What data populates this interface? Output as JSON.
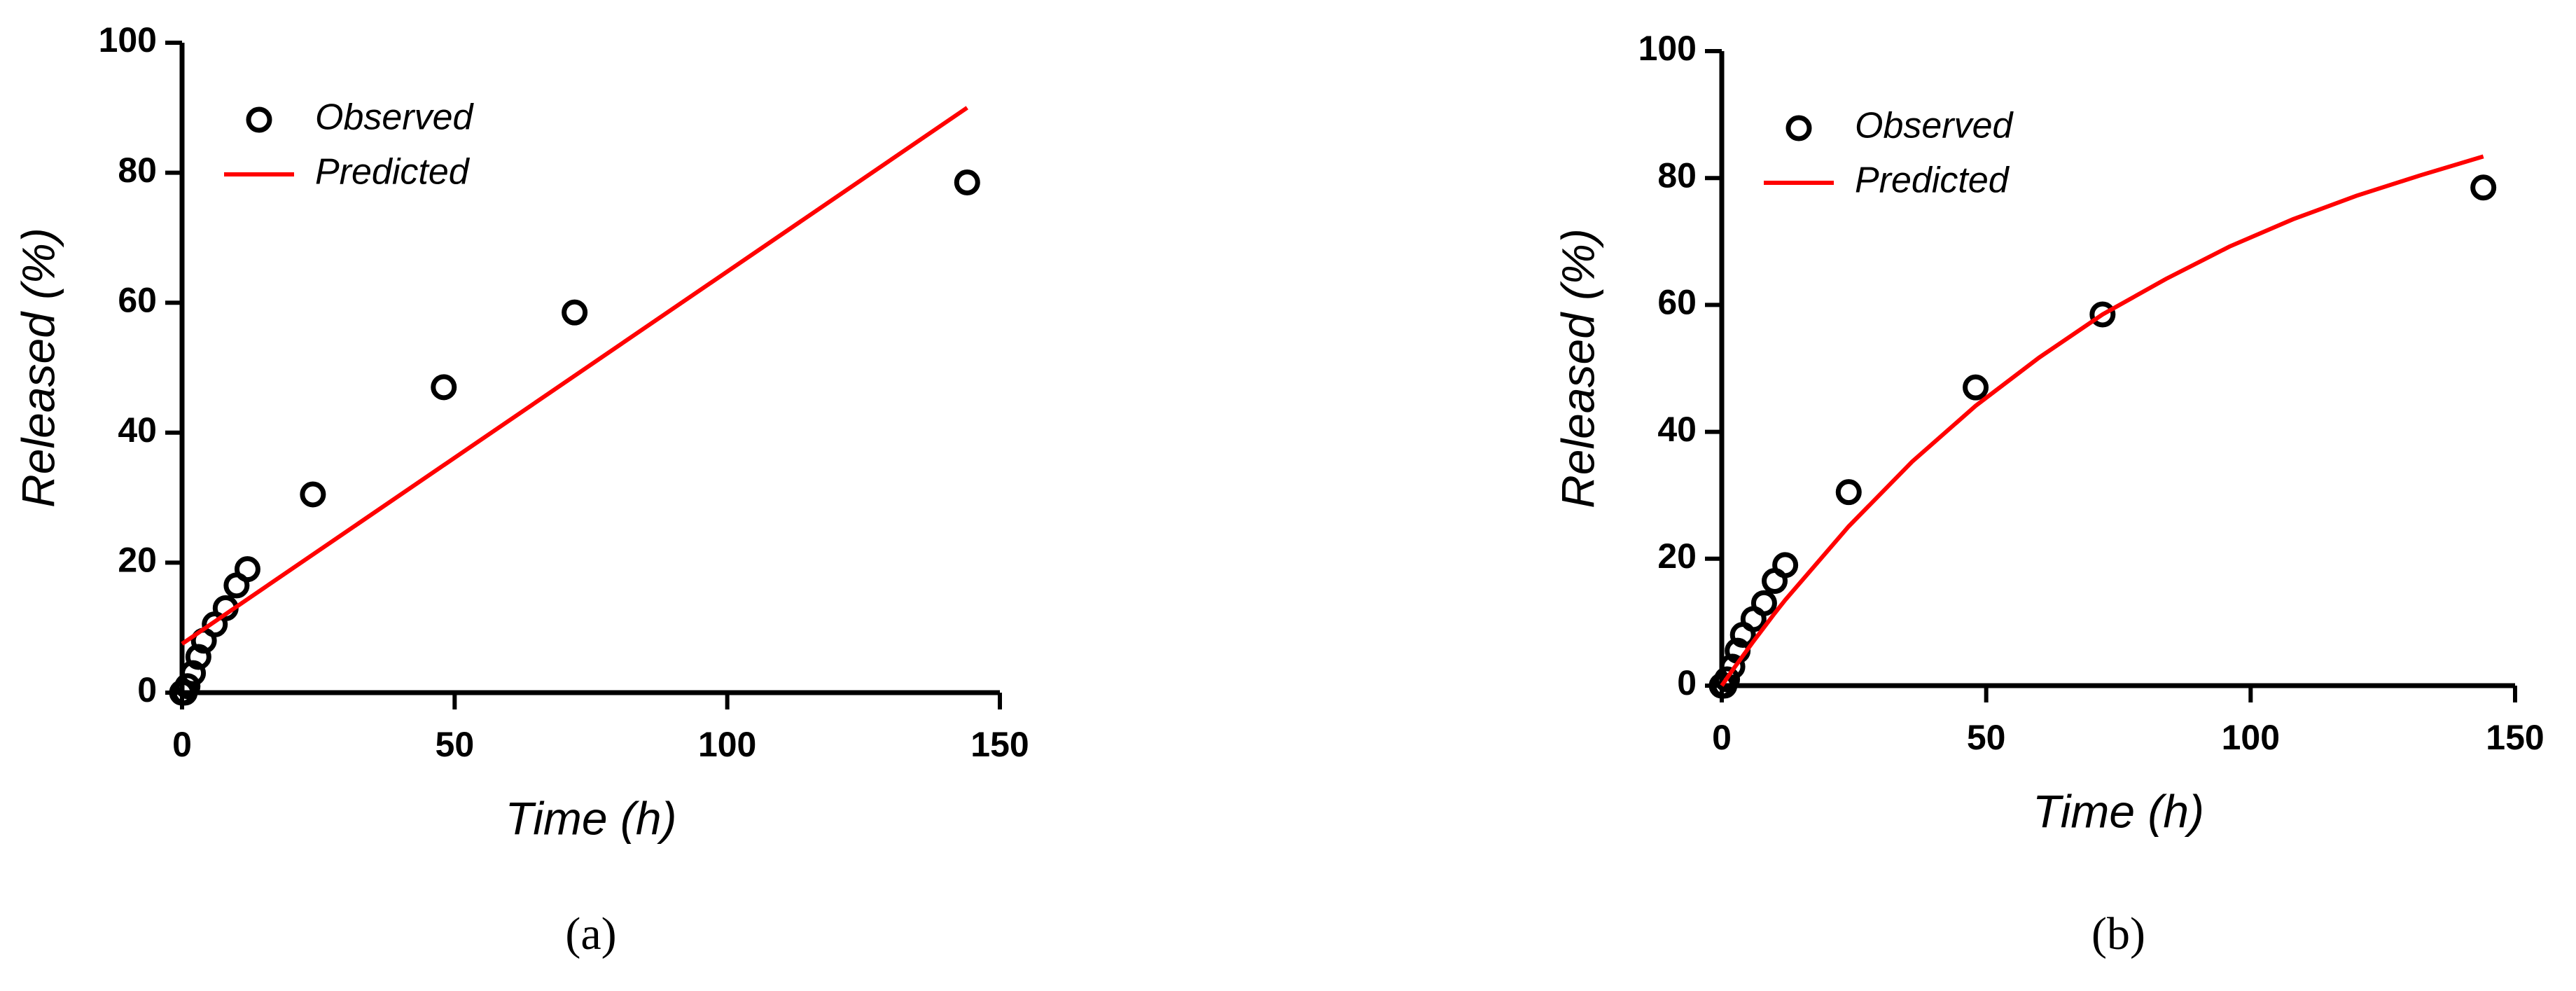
{
  "chart_data": [
    {
      "type": "line",
      "caption": "(a)",
      "xlabel": "Time (h)",
      "ylabel": "Released (%)",
      "xlim": [
        0,
        150
      ],
      "xticks": [
        0,
        50,
        100,
        150
      ],
      "ylim": [
        0,
        100
      ],
      "yticks": [
        0,
        20,
        40,
        60,
        80,
        100
      ],
      "legend": "upper left",
      "series": [
        {
          "name": "Observed",
          "style": "markers",
          "color": "#000000",
          "x": [
            0,
            0.5,
            1,
            2,
            3,
            4,
            6,
            8,
            10,
            12,
            24,
            48,
            72,
            144
          ],
          "values": [
            0,
            0,
            1,
            3,
            5.5,
            8,
            10.5,
            13,
            16.5,
            19,
            30.5,
            47,
            58.5,
            78.5
          ]
        },
        {
          "name": "Predicted",
          "style": "line",
          "color": "#ff0000",
          "x": [
            0,
            144
          ],
          "values": [
            7.5,
            90
          ]
        }
      ]
    },
    {
      "type": "line",
      "caption": "(b)",
      "xlabel": "Time (h)",
      "ylabel": "Released (%)",
      "xlim": [
        0,
        150
      ],
      "xticks": [
        0,
        50,
        100,
        150
      ],
      "ylim": [
        0,
        100
      ],
      "yticks": [
        0,
        20,
        40,
        60,
        80,
        100
      ],
      "legend": "upper left",
      "series": [
        {
          "name": "Observed",
          "style": "markers",
          "color": "#000000",
          "x": [
            0,
            0.5,
            1,
            2,
            3,
            4,
            6,
            8,
            10,
            12,
            24,
            48,
            72,
            144
          ],
          "values": [
            0,
            0,
            1,
            3,
            5.5,
            8,
            10.5,
            13,
            16.5,
            19,
            30.5,
            47,
            58.5,
            78.5
          ]
        },
        {
          "name": "Predicted",
          "style": "line",
          "color": "#ff0000",
          "x": [
            0,
            2,
            4,
            6,
            8,
            10,
            12,
            24,
            36,
            48,
            60,
            72,
            84,
            96,
            108,
            120,
            132,
            144
          ],
          "values": [
            0,
            2.4,
            4.7,
            7.0,
            9.2,
            11.4,
            13.5,
            25.1,
            35.3,
            44.1,
            51.7,
            58.5,
            64.1,
            69.2,
            73.5,
            77.2,
            80.4,
            83.4
          ]
        }
      ]
    }
  ]
}
